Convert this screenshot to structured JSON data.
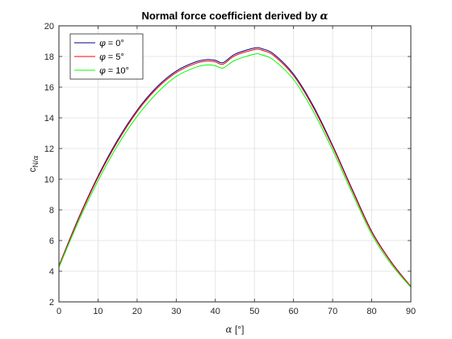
{
  "chart_data": {
    "type": "line",
    "title": "Normal force coefficient derived by ",
    "title_symbol": "α",
    "xlabel_symbol": "α",
    "xlabel": " [°]",
    "ylabel_base": "c",
    "ylabel_sub": "N/",
    "ylabel_sub_symbol": "α",
    "xlim": [
      0,
      90
    ],
    "ylim": [
      2,
      20
    ],
    "xticks": [
      0,
      10,
      20,
      30,
      40,
      50,
      60,
      70,
      80,
      90
    ],
    "yticks": [
      2,
      4,
      6,
      8,
      10,
      12,
      14,
      16,
      18,
      20
    ],
    "grid": true,
    "legend_position": "top-left",
    "series": [
      {
        "symbol": "φ",
        "name": " = 0°",
        "color": "#00007f",
        "x": [
          0,
          5,
          10,
          15,
          20,
          25,
          30,
          35,
          38,
          40,
          42,
          45,
          50,
          52,
          55,
          60,
          65,
          70,
          75,
          80,
          85,
          90
        ],
        "y": [
          4.35,
          7.45,
          10.2,
          12.55,
          14.5,
          16.0,
          17.05,
          17.65,
          17.8,
          17.75,
          17.6,
          18.15,
          18.55,
          18.5,
          18.15,
          16.85,
          14.8,
          12.2,
          9.35,
          6.6,
          4.6,
          3.0
        ]
      },
      {
        "symbol": "φ",
        "name": " = 5°",
        "color": "#ff0000",
        "x": [
          0,
          5,
          10,
          15,
          20,
          25,
          30,
          35,
          38,
          40,
          42,
          45,
          50,
          52,
          55,
          60,
          65,
          70,
          75,
          80,
          85,
          90
        ],
        "y": [
          4.33,
          7.4,
          10.12,
          12.45,
          14.4,
          15.9,
          16.95,
          17.55,
          17.7,
          17.65,
          17.5,
          18.05,
          18.45,
          18.4,
          18.05,
          16.75,
          14.7,
          12.12,
          9.28,
          6.55,
          4.57,
          3.0
        ]
      },
      {
        "symbol": "φ",
        "name": " = 10°",
        "color": "#00ff00",
        "x": [
          0,
          5,
          10,
          15,
          20,
          25,
          30,
          35,
          38,
          40,
          42,
          45,
          50,
          52,
          55,
          60,
          65,
          70,
          75,
          80,
          85,
          90
        ],
        "y": [
          4.25,
          7.25,
          9.9,
          12.2,
          14.1,
          15.6,
          16.7,
          17.3,
          17.45,
          17.4,
          17.25,
          17.75,
          18.15,
          18.1,
          17.75,
          16.5,
          14.45,
          11.9,
          9.1,
          6.4,
          4.45,
          2.95
        ]
      }
    ]
  }
}
